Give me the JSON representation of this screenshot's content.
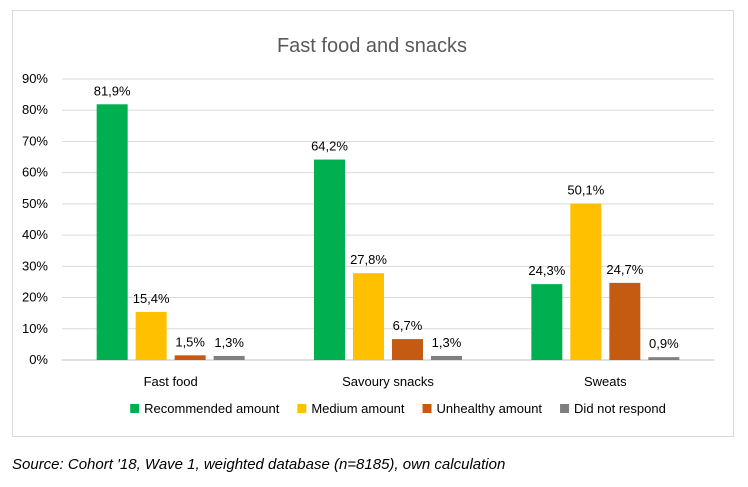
{
  "chart_data": {
    "type": "bar",
    "title": "Fast food and snacks",
    "xlabel": "",
    "ylabel": "",
    "categories": [
      "Fast food",
      "Savoury snacks",
      "Sweats"
    ],
    "series": [
      {
        "name": "Recommended amount",
        "values": [
          81.9,
          64.2,
          24.3
        ],
        "labels": [
          "81,9%",
          "64,2%",
          "24,3%"
        ],
        "color": "#00b050"
      },
      {
        "name": "Medium amount",
        "values": [
          15.4,
          27.8,
          50.1
        ],
        "labels": [
          "15,4%",
          "27,8%",
          "50,1%"
        ],
        "color": "#ffc000"
      },
      {
        "name": "Unhealthy amount",
        "values": [
          1.5,
          6.7,
          24.7
        ],
        "labels": [
          "1,5%",
          "6,7%",
          "24,7%"
        ],
        "color": "#c55a11"
      },
      {
        "name": "Did not respond",
        "values": [
          1.3,
          1.3,
          0.9
        ],
        "labels": [
          "1,3%",
          "1,3%",
          "0,9%"
        ],
        "color": "#7f7f7f"
      }
    ],
    "ylim": [
      0,
      90
    ],
    "y_ticks": [
      "0%",
      "10%",
      "20%",
      "30%",
      "40%",
      "50%",
      "60%",
      "70%",
      "80%",
      "90%"
    ],
    "grid": true,
    "legend": "bottom"
  },
  "source_note": "Source: Cohort '18, Wave 1, weighted database (n=8185), own calculation"
}
